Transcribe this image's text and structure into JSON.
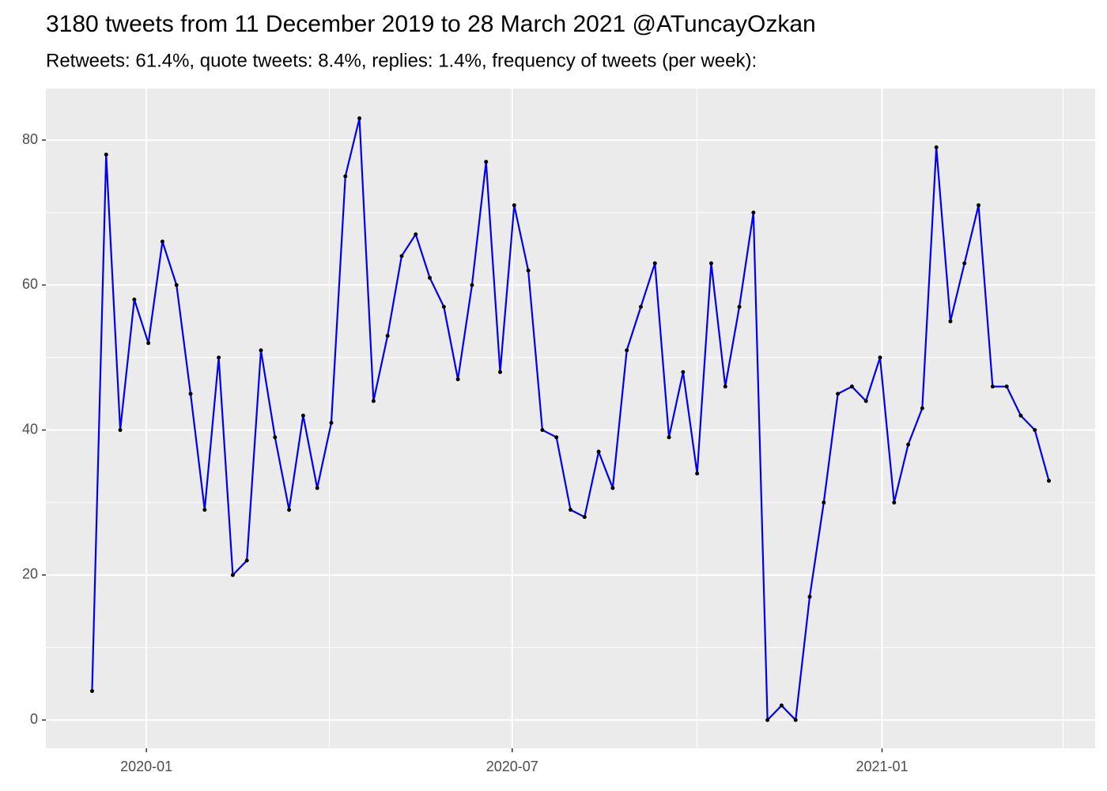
{
  "chart_data": {
    "type": "line",
    "title": "3180 tweets from 11 December 2019 to 28 March 2021 @ATuncayOzkan",
    "subtitle": "Retweets: 61.4%, quote tweets: 8.4%, replies: 1.4%, frequency of tweets (per week):",
    "x": [
      "2019-12-05",
      "2019-12-12",
      "2019-12-19",
      "2019-12-26",
      "2020-01-02",
      "2020-01-09",
      "2020-01-16",
      "2020-01-23",
      "2020-01-30",
      "2020-02-06",
      "2020-02-13",
      "2020-02-20",
      "2020-02-27",
      "2020-03-05",
      "2020-03-12",
      "2020-03-19",
      "2020-03-26",
      "2020-04-02",
      "2020-04-09",
      "2020-04-16",
      "2020-04-23",
      "2020-04-30",
      "2020-05-07",
      "2020-05-14",
      "2020-05-21",
      "2020-05-28",
      "2020-06-04",
      "2020-06-11",
      "2020-06-18",
      "2020-06-25",
      "2020-07-02",
      "2020-07-09",
      "2020-07-16",
      "2020-07-23",
      "2020-07-30",
      "2020-08-06",
      "2020-08-13",
      "2020-08-20",
      "2020-08-27",
      "2020-09-03",
      "2020-09-10",
      "2020-09-17",
      "2020-09-24",
      "2020-10-01",
      "2020-10-08",
      "2020-10-15",
      "2020-10-22",
      "2020-10-29",
      "2020-11-05",
      "2020-11-12",
      "2020-11-19",
      "2020-11-26",
      "2020-12-03",
      "2020-12-10",
      "2020-12-17",
      "2020-12-24",
      "2020-12-31",
      "2021-01-07",
      "2021-01-14",
      "2021-01-21",
      "2021-01-28",
      "2021-02-04",
      "2021-02-11",
      "2021-02-18",
      "2021-02-25",
      "2021-03-04",
      "2021-03-11",
      "2021-03-18",
      "2021-03-25"
    ],
    "values": [
      4,
      78,
      40,
      58,
      52,
      66,
      60,
      45,
      29,
      50,
      20,
      22,
      51,
      39,
      29,
      42,
      32,
      41,
      75,
      83,
      44,
      53,
      64,
      67,
      61,
      57,
      47,
      60,
      77,
      48,
      71,
      62,
      40,
      39,
      29,
      28,
      37,
      32,
      51,
      57,
      63,
      39,
      48,
      34,
      63,
      46,
      57,
      70,
      0,
      2,
      0,
      17,
      30,
      45,
      46,
      44,
      50,
      30,
      38,
      43,
      79,
      55,
      63,
      71,
      46,
      46,
      42,
      40,
      33
    ],
    "color": "#0000ee",
    "point_color": "#000000",
    "xlim": [
      "2019-11-12",
      "2021-04-17"
    ],
    "xticks": [
      {
        "value": "2020-01-01",
        "label": "2020-01"
      },
      {
        "value": "2020-07-01",
        "label": "2020-07"
      },
      {
        "value": "2021-01-01",
        "label": "2021-01"
      }
    ],
    "xminorticks": [
      "2020-04-01",
      "2020-10-01",
      "2021-04-01"
    ],
    "ylim": [
      -3.9,
      87.1
    ],
    "yticks": [
      0,
      20,
      40,
      60,
      80
    ],
    "yminorticks": [
      10,
      30,
      50,
      70
    ],
    "grid": true
  }
}
